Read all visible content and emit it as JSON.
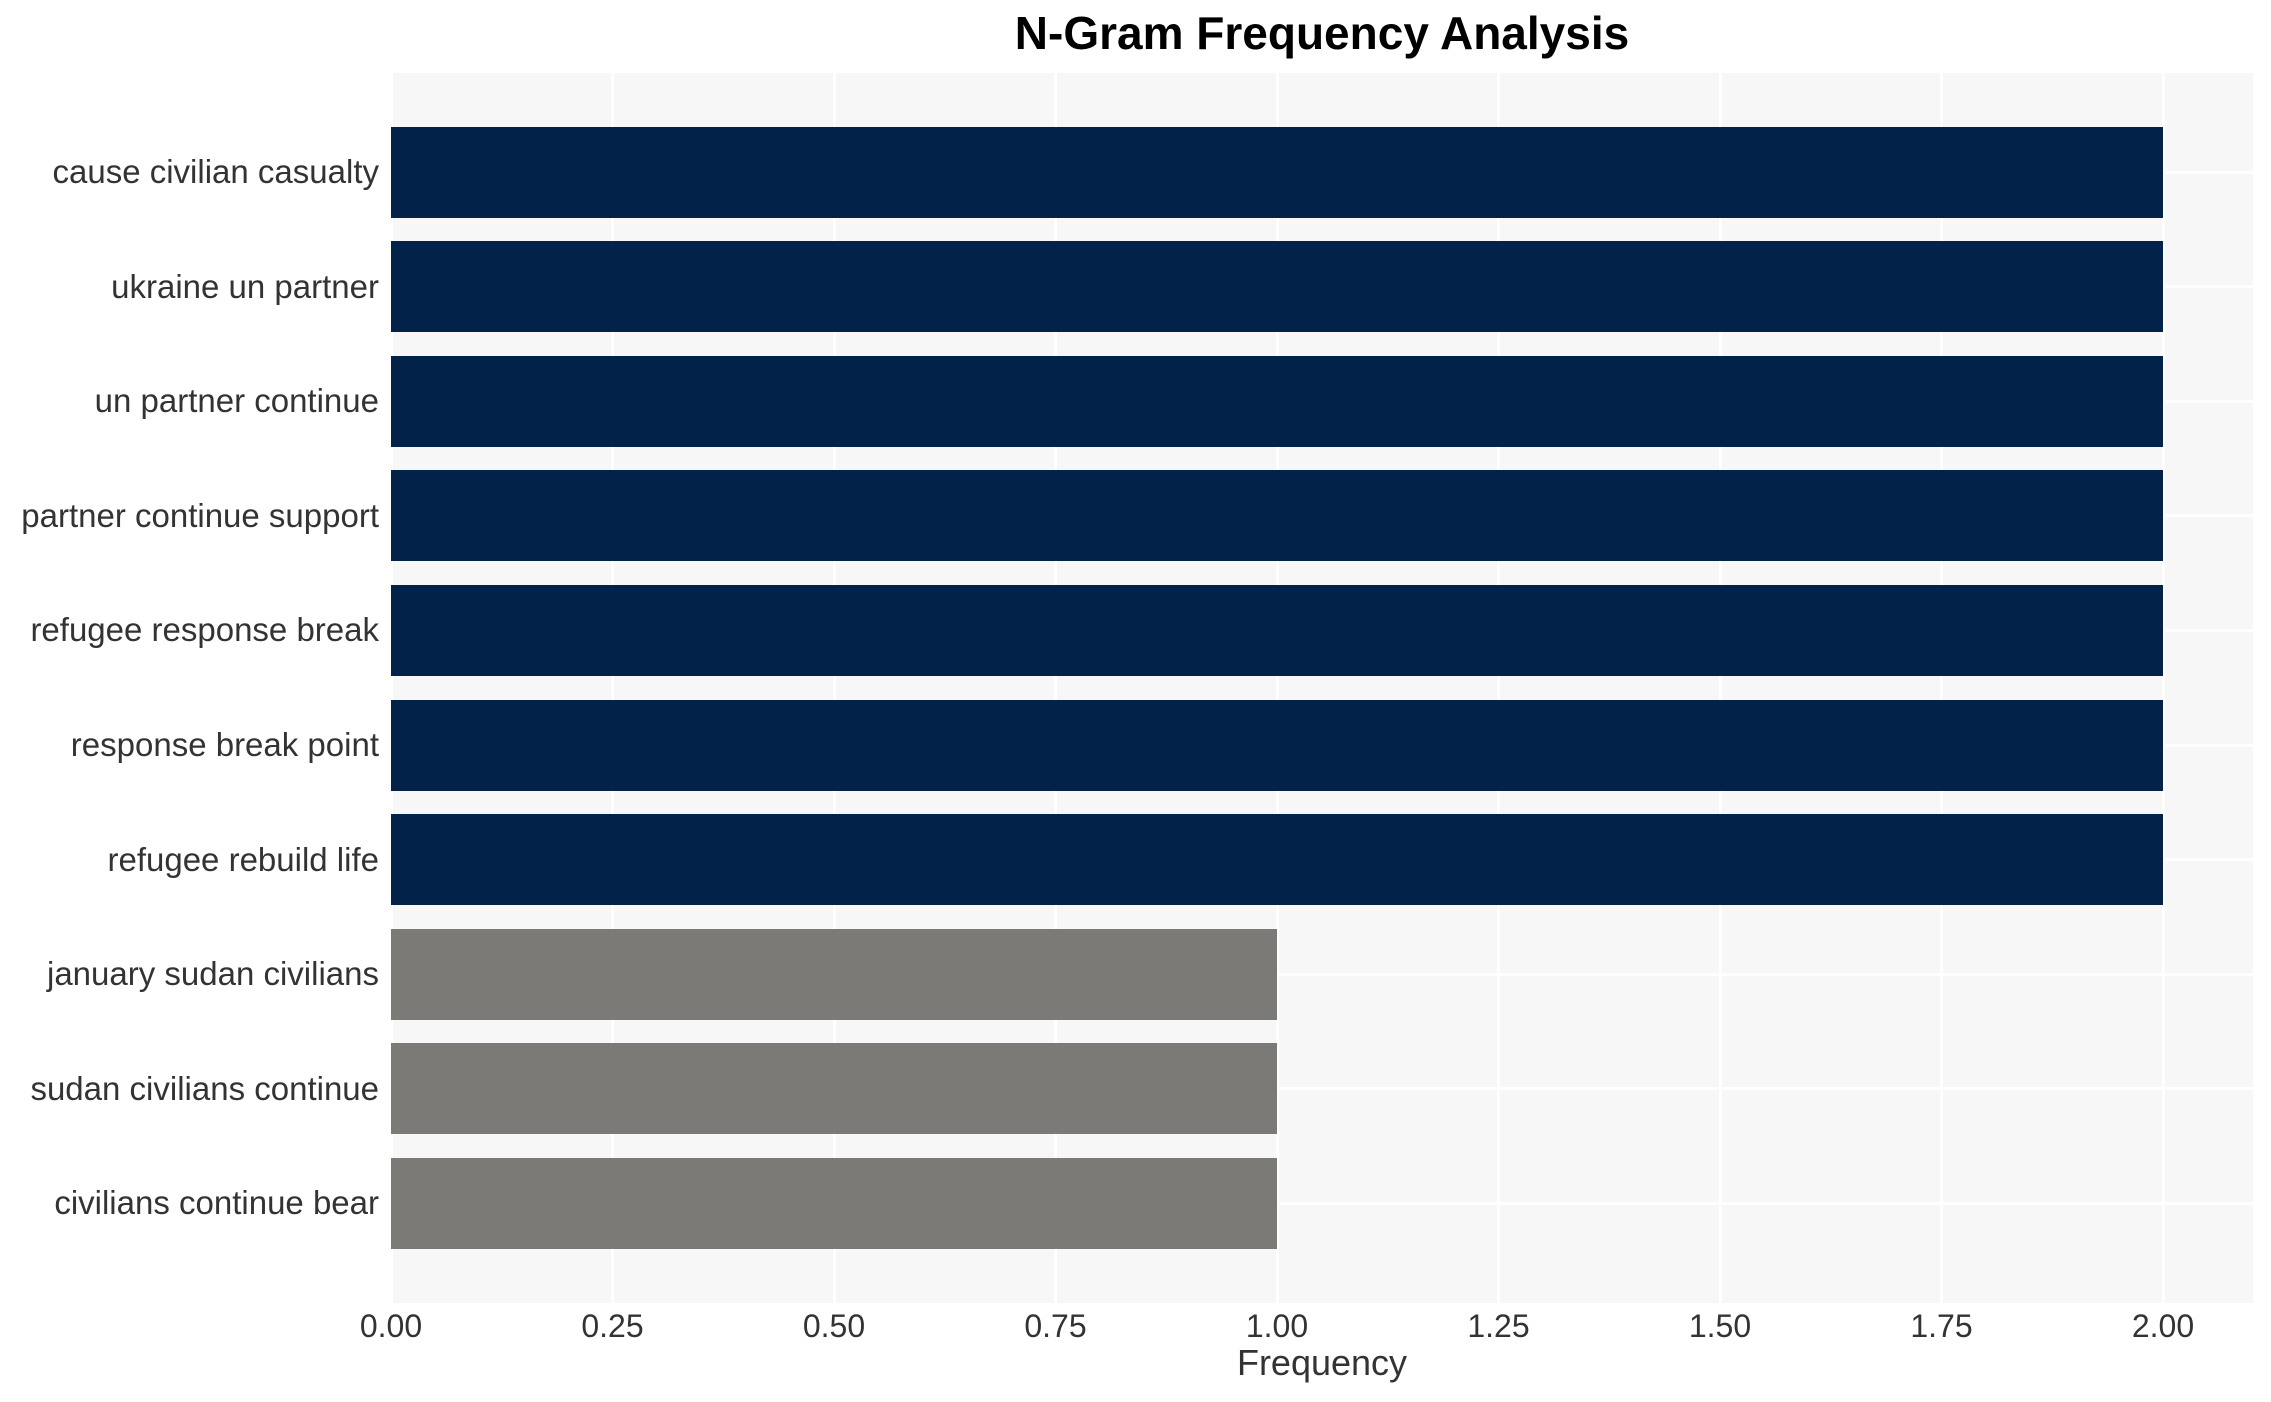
{
  "title": "N-Gram Frequency Analysis",
  "colors": {
    "bar_primary": "#02224A",
    "bar_secondary": "#7B7A77",
    "plot_background": "#F7F7F7",
    "gridline": "#FFFFFF",
    "tick_text": "#333333",
    "title_text": "#000000"
  },
  "chart_data": {
    "type": "bar",
    "orientation": "horizontal",
    "title": "N-Gram Frequency Analysis",
    "xlabel": "Frequency",
    "ylabel": "",
    "grid": true,
    "legend_position": "none",
    "xlim": [
      0,
      2.1
    ],
    "x_tick_labels": [
      "0.00",
      "0.25",
      "0.50",
      "0.75",
      "1.00",
      "1.25",
      "1.50",
      "1.75",
      "2.00"
    ],
    "x_tick_values": [
      0,
      0.25,
      0.5,
      0.75,
      1.0,
      1.25,
      1.5,
      1.75,
      2.0
    ],
    "categories": [
      "cause civilian casualty",
      "ukraine un partner",
      "un partner continue",
      "partner continue support",
      "refugee response break",
      "response break point",
      "refugee rebuild life",
      "january sudan civilians",
      "sudan civilians continue",
      "civilians continue bear"
    ],
    "values": [
      2,
      2,
      2,
      2,
      2,
      2,
      2,
      1,
      1,
      1
    ],
    "bar_colors": [
      "#02224A",
      "#02224A",
      "#02224A",
      "#02224A",
      "#02224A",
      "#02224A",
      "#02224A",
      "#7B7A77",
      "#7B7A77",
      "#7B7A77"
    ]
  }
}
